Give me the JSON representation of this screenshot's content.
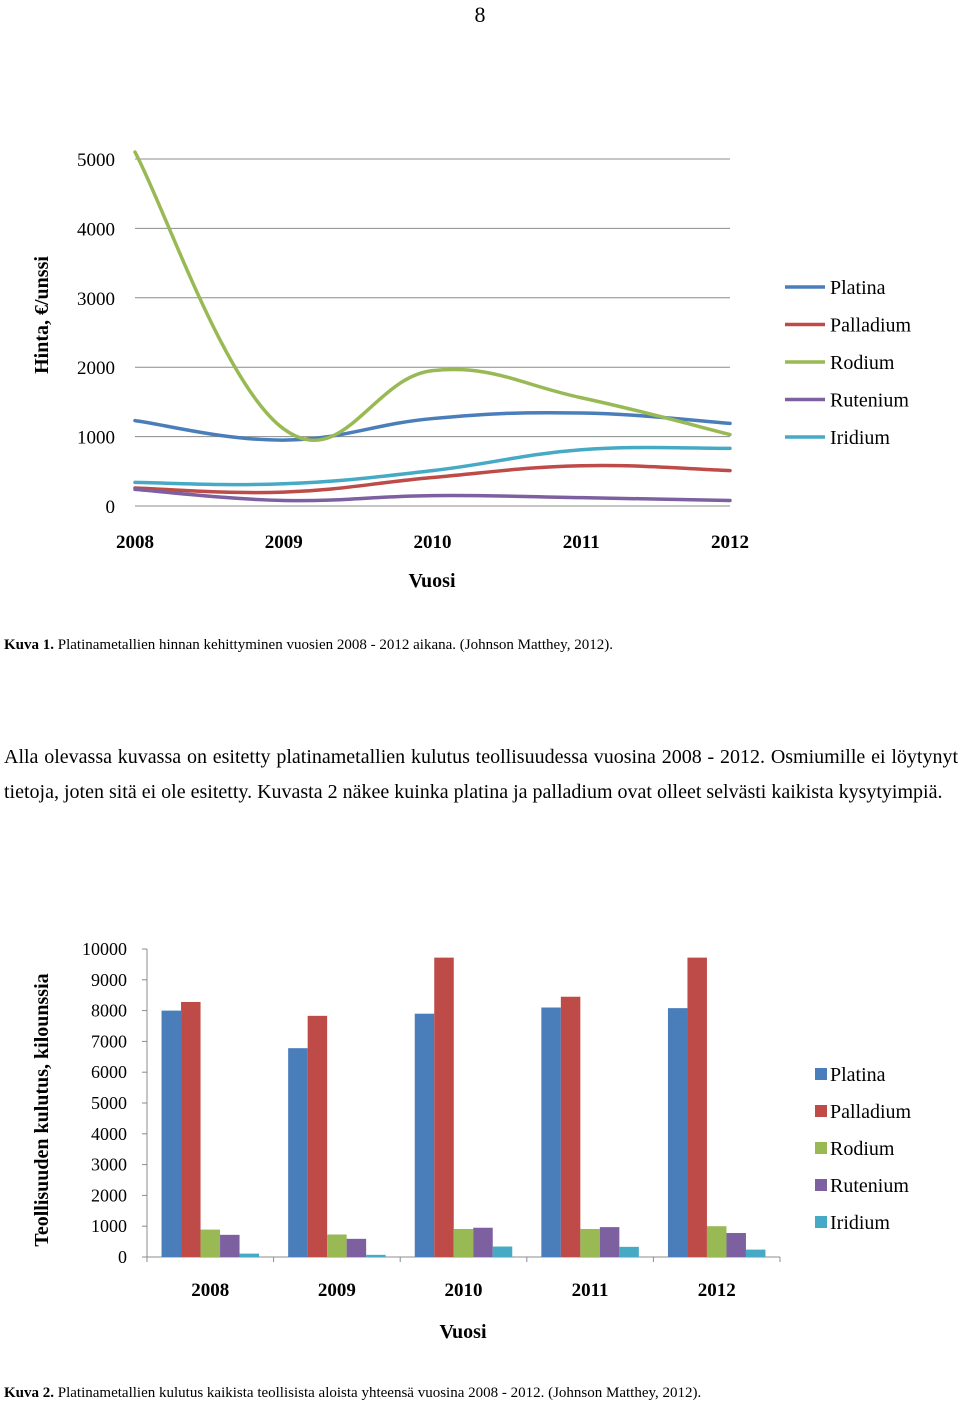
{
  "page_number": "8",
  "captions": [
    {
      "label": "Kuva 1.",
      "text": " Platinametallien hinnan kehittyminen vuosien 2008 - 2012 aikana. (Johnson Matthey, 2012)."
    },
    {
      "label": "Kuva 2.",
      "text": " Platinametallien kulutus kaikista teollisista aloista yhteensä vuosina 2008 - 2012. (Johnson Matthey, 2012)."
    }
  ],
  "body_text": "Alla olevassa kuvassa on esitetty platinametallien kulutus teollisuudessa vuosina 2008 - 2012. Osmiumille ei löytynyt tietoja, joten sitä ei ole esitetty. Kuvasta 2 näkee kuinka platina ja palladium ovat olleet selvästi kaikista kysytyimpiä.",
  "colors": {
    "Platina": "#4a7ebb",
    "Palladium": "#be4b48",
    "Rodium": "#98b954",
    "Rutenium": "#7d60a0",
    "Iridium": "#46aac5"
  },
  "chart_data": [
    {
      "type": "line",
      "xlabel": "Vuosi",
      "ylabel": "Hinta, €/unssi",
      "categories": [
        "2008",
        "2009",
        "2010",
        "2011",
        "2012"
      ],
      "ylim": [
        0,
        5000
      ],
      "yticks": [
        "0",
        "1000",
        "2000",
        "3000",
        "4000",
        "5000"
      ],
      "grid": true,
      "legend": "right",
      "smooth": true,
      "series": [
        {
          "name": "Platina",
          "values": [
            1230,
            950,
            1260,
            1340,
            1190
          ]
        },
        {
          "name": "Palladium",
          "values": [
            260,
            200,
            410,
            580,
            510
          ]
        },
        {
          "name": "Rodium",
          "values": [
            5100,
            1110,
            1950,
            1560,
            1030
          ]
        },
        {
          "name": "Rutenium",
          "values": [
            240,
            80,
            150,
            120,
            80
          ]
        },
        {
          "name": "Iridium",
          "values": [
            340,
            320,
            510,
            810,
            830
          ]
        }
      ]
    },
    {
      "type": "bar",
      "xlabel": "Vuosi",
      "ylabel": "Teollisuuden kulutus, kilounssia",
      "categories": [
        "2008",
        "2009",
        "2010",
        "2011",
        "2012"
      ],
      "ylim": [
        0,
        10000
      ],
      "yticks": [
        "0",
        "1000",
        "2000",
        "3000",
        "4000",
        "5000",
        "6000",
        "7000",
        "8000",
        "9000",
        "10000"
      ],
      "grid": false,
      "legend": "right",
      "series": [
        {
          "name": "Platina",
          "values": [
            8000,
            6780,
            7900,
            8100,
            8080
          ]
        },
        {
          "name": "Palladium",
          "values": [
            8280,
            7830,
            9720,
            8450,
            9720
          ]
        },
        {
          "name": "Rodium",
          "values": [
            890,
            730,
            910,
            910,
            1000
          ]
        },
        {
          "name": "Rutenium",
          "values": [
            720,
            590,
            950,
            970,
            780
          ]
        },
        {
          "name": "Iridium",
          "values": [
            110,
            70,
            340,
            330,
            240
          ]
        }
      ]
    }
  ]
}
